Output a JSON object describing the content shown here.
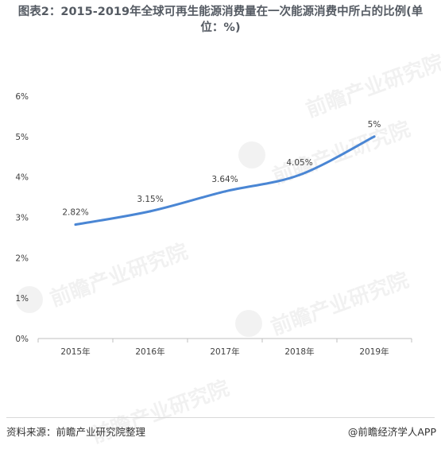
{
  "title": "图表2：2015-2019年全球可再生能源消费量在一次能源消费中所占的比例(单位：%)",
  "watermark": "前瞻产业研究院",
  "footer": {
    "source": "资料来源：前瞻产业研究院整理",
    "credit": "@前瞻经济学人APP"
  },
  "chart_data": {
    "type": "line",
    "title": "图表2：2015-2019年全球可再生能源消费量在一次能源消费中所占的比例(单位：%)",
    "categories": [
      "2015年",
      "2016年",
      "2017年",
      "2018年",
      "2019年"
    ],
    "series": [
      {
        "values": [
          2.82,
          3.15,
          3.64,
          4.05,
          5
        ],
        "labels": [
          "2.82%",
          "3.15%",
          "3.64%",
          "4.05%",
          "5%"
        ]
      }
    ],
    "yticks": [
      "0%",
      "1%",
      "2%",
      "3%",
      "4%",
      "5%",
      "6%"
    ],
    "ylim": [
      0,
      6
    ],
    "grid": false,
    "colors": {
      "line": "#4a86d4",
      "axis": "#bfbfbf",
      "text": "#404040"
    }
  }
}
